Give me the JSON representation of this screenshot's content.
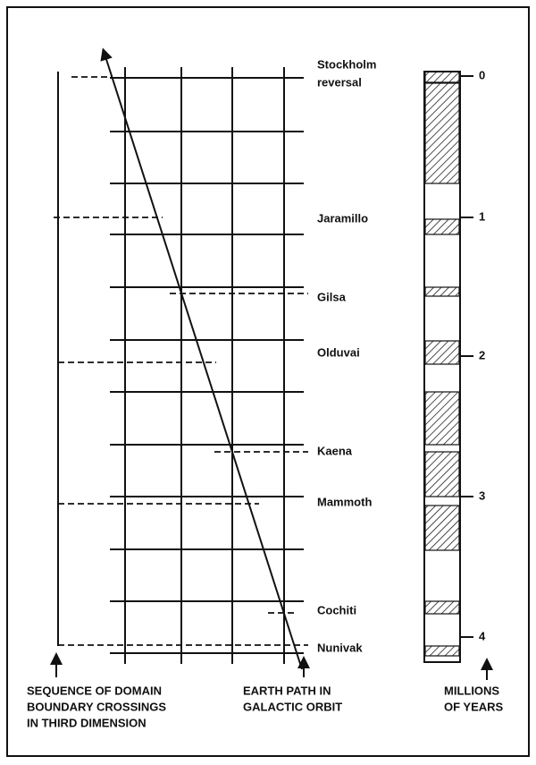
{
  "events": [
    [
      "Stockholm",
      "reversal"
    ],
    [
      "Jaramillo"
    ],
    [
      "Gilsa"
    ],
    [
      "Olduvai"
    ],
    [
      "Kaena"
    ],
    [
      "Mammoth"
    ],
    [
      "Cochiti"
    ],
    [
      "Nunivak"
    ]
  ],
  "scale_labels": [
    0,
    1,
    2,
    3,
    4
  ],
  "captions": {
    "left": [
      "SEQUENCE OF DOMAIN",
      "BOUNDARY CROSSINGS",
      "IN THIRD DIMENSION"
    ],
    "middle": [
      "EARTH PATH IN",
      "GALACTIC ORBIT"
    ],
    "right": [
      "MILLIONS",
      "OF YEARS"
    ]
  }
}
